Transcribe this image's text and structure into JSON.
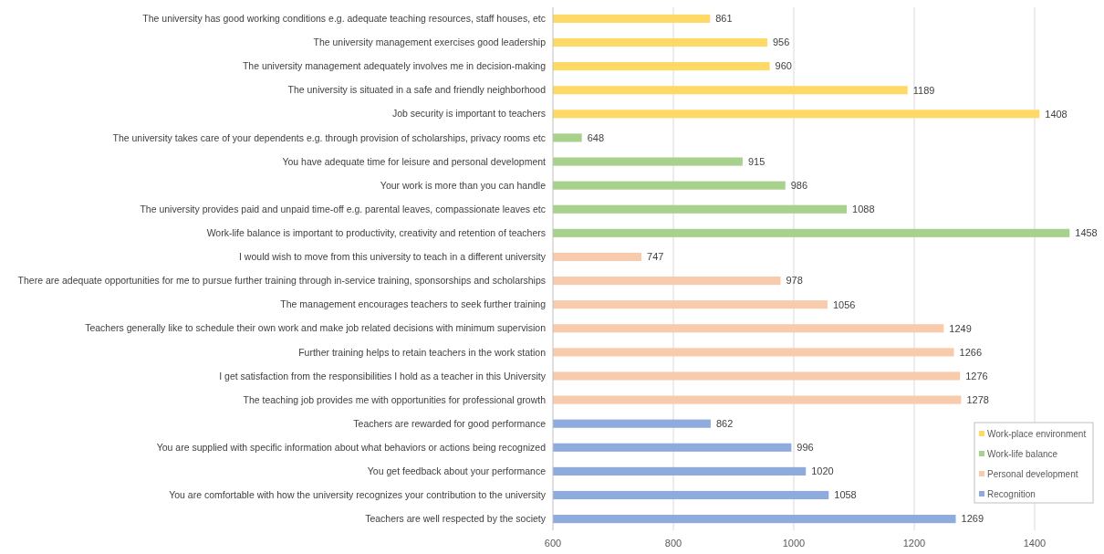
{
  "chart_data": {
    "type": "bar",
    "orientation": "horizontal",
    "categories": [
      "The university has good working conditions e.g. adequate teaching resources, staff houses, etc",
      "The university management exercises good leadership",
      "The university management adequately involves me in decision-making",
      "The university is situated in a safe and friendly neighborhood",
      "Job security is important to teachers",
      "The university takes care of your dependents e.g. through provision of scholarships, privacy rooms etc",
      "You have adequate time for leisure and personal development",
      "Your work is more than you can handle",
      "The university provides paid and unpaid time-off e.g. parental leaves, compassionate leaves etc",
      "Work-life balance is important to productivity, creativity and retention of teachers",
      "I would wish to move from this university to teach in a different university",
      "There are adequate opportunities for me to pursue further training through in-service training, sponsorships and scholarships",
      "The management encourages teachers to seek further training",
      "Teachers generally like to schedule their own work and make job related decisions with minimum supervision",
      "Further training helps to retain teachers in the work station",
      "I get satisfaction from the responsibilities I hold as a teacher in this University",
      "The teaching job provides me with opportunities for professional growth",
      "Teachers are rewarded for good performance",
      "You are supplied with specific information about what behaviors or actions being recognized",
      "You get feedback about your performance",
      "You are comfortable with how the university recognizes your contribution to the university",
      "Teachers are well respected by the society"
    ],
    "series": [
      {
        "name": "Work-place environment",
        "color": "#ffd966",
        "values": [
          861,
          956,
          960,
          1189,
          1408,
          null,
          null,
          null,
          null,
          null,
          null,
          null,
          null,
          null,
          null,
          null,
          null,
          null,
          null,
          null,
          null,
          null
        ]
      },
      {
        "name": "Work-life balance",
        "color": "#a9d18e",
        "values": [
          null,
          null,
          null,
          null,
          null,
          648,
          915,
          986,
          1088,
          1458,
          null,
          null,
          null,
          null,
          null,
          null,
          null,
          null,
          null,
          null,
          null,
          null
        ]
      },
      {
        "name": "Personal development",
        "color": "#f8cbad",
        "values": [
          null,
          null,
          null,
          null,
          null,
          null,
          null,
          null,
          null,
          null,
          747,
          978,
          1056,
          1249,
          1266,
          1276,
          1278,
          null,
          null,
          null,
          null,
          null
        ]
      },
      {
        "name": "Recognition",
        "color": "#8faadc",
        "values": [
          null,
          null,
          null,
          null,
          null,
          null,
          null,
          null,
          null,
          null,
          null,
          null,
          null,
          null,
          null,
          null,
          null,
          862,
          996,
          1020,
          1058,
          1269
        ]
      }
    ],
    "xlim": [
      600,
      1500
    ],
    "xticks": [
      600,
      800,
      1000,
      1200,
      1400
    ],
    "grid": "x",
    "legend": "bottom right",
    "data_labels": true
  }
}
